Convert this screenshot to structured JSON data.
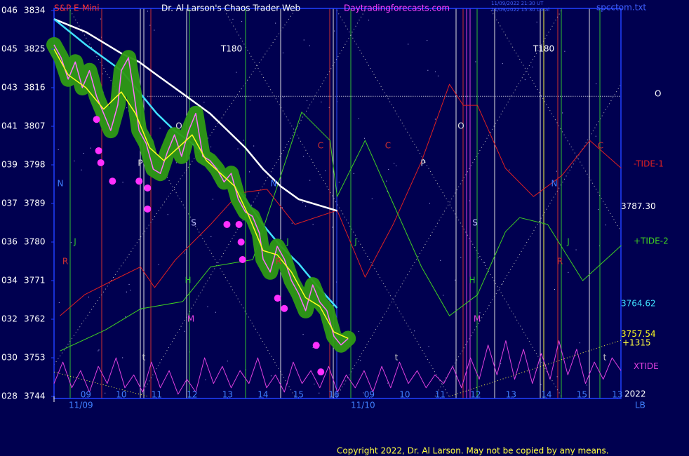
{
  "chart_data": {
    "type": "line",
    "title": "Dr. Al Larson's Chaos Trader Web",
    "instrument": "S&P E-Mini",
    "site": "Daytradingforecasts.com",
    "file": "spcctom.txt",
    "timestamps": [
      "11/09/2022 21:30 UT",
      "11/09/2022 15:30 Local"
    ],
    "copyright": "Copyright 2022, Dr. Al Larson. May not be copied by any means.",
    "dates": [
      "11/09",
      "11/10"
    ],
    "ylim": [
      3744,
      3834
    ],
    "yticks": [
      3834,
      3825,
      3816,
      3807,
      3798,
      3789,
      3780,
      3771,
      3762,
      3753,
      3744
    ],
    "ytick_codes": [
      "046",
      "045",
      "043",
      "041",
      "039",
      "037",
      "036",
      "034",
      "032",
      "030",
      "028"
    ],
    "xlim": [
      0.1,
      16.1
    ],
    "xticks": [
      {
        "value": 1,
        "label": "09"
      },
      {
        "value": 2,
        "label": "10"
      },
      {
        "value": 3,
        "label": "11"
      },
      {
        "value": 4,
        "label": "12"
      },
      {
        "value": 5,
        "label": "13"
      },
      {
        "value": 6,
        "label": "14"
      },
      {
        "value": 7,
        "label": "15"
      },
      {
        "value": 8,
        "label": "16"
      },
      {
        "value": 9,
        "label": "09"
      },
      {
        "value": 10,
        "label": "10"
      },
      {
        "value": 11,
        "label": "11"
      },
      {
        "value": 12,
        "label": "12"
      },
      {
        "value": 13,
        "label": "13"
      },
      {
        "value": 14,
        "label": "14"
      },
      {
        "value": 15,
        "label": "15"
      },
      {
        "value": 16,
        "label": "13"
      }
    ],
    "markers": [
      "N",
      "N",
      "N",
      "J",
      "J",
      "J",
      "J",
      "R",
      "R",
      "R",
      "H",
      "H",
      "M",
      "M",
      "S",
      "S",
      "P",
      "P",
      "O",
      "O",
      "C",
      "C",
      "C",
      "T180",
      "T180",
      "t",
      "t",
      "t"
    ],
    "annotations": [
      "+1315",
      "2022",
      "LB"
    ],
    "hline": {
      "value": 3814,
      "from": 2.74,
      "label": "O",
      "color": "#ffffff"
    },
    "series": [
      {
        "name": "-TIDE-1",
        "color": "#e02020",
        "width": 1,
        "x": [
          0.27,
          0.96,
          1.75,
          2.54,
          2.94,
          3.53,
          4.52,
          5.32,
          6.11,
          6.9,
          8.09,
          8.88,
          9.67,
          10.47,
          11.26,
          11.65,
          12.05,
          12.84,
          13.63,
          14.43,
          15.22,
          16.11
        ],
        "values": [
          3762.8,
          3767.7,
          3771,
          3774.2,
          3769.4,
          3775.9,
          3784.1,
          3791.4,
          3792.3,
          3784.1,
          3787.4,
          3771.8,
          3784.1,
          3798.8,
          3816.8,
          3811.9,
          3811.9,
          3797.2,
          3790.6,
          3795.5,
          3803.7,
          3797.2
        ]
      },
      {
        "name": "+TIDE-2",
        "color": "#40d020",
        "width": 1,
        "x": [
          0.27,
          1.55,
          2.54,
          3.73,
          4.52,
          5.71,
          6.5,
          7.09,
          7.89,
          8.09,
          8.88,
          9.67,
          10.47,
          11.26,
          12.05,
          12.84,
          13.24,
          14.03,
          15.02,
          16.11
        ],
        "values": [
          3754.6,
          3759.5,
          3764.4,
          3766.1,
          3774.2,
          3775.9,
          3795.5,
          3810.3,
          3803.7,
          3790.6,
          3803.7,
          3789,
          3774.2,
          3762.8,
          3767.7,
          3782.4,
          3785.7,
          3784.1,
          3771,
          3779.2
        ]
      },
      {
        "name": "XTIDE",
        "color": "#e040e0",
        "width": 1,
        "x": [
          0.1,
          0.35,
          0.6,
          0.85,
          1.1,
          1.35,
          1.6,
          1.85,
          2.1,
          2.35,
          2.6,
          2.85,
          3.1,
          3.35,
          3.6,
          3.85,
          4.1,
          4.35,
          4.6,
          4.85,
          5.1,
          5.35,
          5.6,
          5.85,
          6.1,
          6.35,
          6.6,
          6.85,
          7.1,
          7.35,
          7.6,
          7.85,
          8.1,
          8.35,
          8.6,
          8.85,
          9.1,
          9.35,
          9.6,
          9.85,
          10.1,
          10.35,
          10.6,
          10.85,
          11.1,
          11.35,
          11.6,
          11.85,
          12.1,
          12.35,
          12.6,
          12.85,
          13.1,
          13.35,
          13.6,
          13.85,
          14.1,
          14.35,
          14.6,
          14.85,
          15.1,
          15.35,
          15.6,
          15.85,
          16.1
        ],
        "values": [
          3747,
          3752,
          3746,
          3750,
          3745,
          3751,
          3747,
          3753,
          3746,
          3749,
          3745,
          3752,
          3746,
          3750,
          3744.5,
          3748,
          3745,
          3753,
          3747,
          3751,
          3746,
          3750,
          3747,
          3753,
          3746,
          3749,
          3745,
          3752,
          3747,
          3750,
          3746,
          3751,
          3745,
          3749,
          3746,
          3750,
          3745,
          3751,
          3746,
          3752,
          3747,
          3750,
          3746,
          3749,
          3747,
          3751,
          3746,
          3753,
          3748,
          3756,
          3749,
          3757,
          3748,
          3755,
          3747,
          3754,
          3748,
          3757,
          3749,
          3755,
          3747,
          3752,
          3748,
          3753,
          3750
        ]
      },
      {
        "color": "#ffff40",
        "width": 1,
        "dash": true,
        "x": [
          0.1,
          2.74
        ],
        "values": [
          3749.7,
          3744
        ]
      },
      {
        "color": "#ffff40",
        "width": 1,
        "dash": true,
        "x": [
          11.26,
          16.11
        ],
        "values": [
          3744,
          3757.1
        ]
      },
      {
        "color": "#ffffff",
        "width": 2.5,
        "x": [
          0.1,
          1,
          2,
          2.5,
          3,
          3.5,
          4,
          4.5,
          5,
          5.5,
          6,
          6.5,
          7,
          8.09
        ],
        "values": [
          3832,
          3829,
          3824,
          3822,
          3819,
          3816,
          3813,
          3810,
          3806,
          3802,
          3797,
          3793,
          3790,
          3787.3
        ],
        "end_label": "3787.30"
      },
      {
        "color": "#40e0ff",
        "width": 2.5,
        "x": [
          0.1,
          1,
          2,
          2.5,
          3,
          3.5,
          4,
          4.5,
          5,
          5.5,
          6,
          6.5,
          7,
          7.5,
          8.09
        ],
        "values": [
          3832,
          3826,
          3820,
          3815,
          3810,
          3806,
          3803,
          3799,
          3795,
          3790,
          3784,
          3779,
          3775,
          3770,
          3764.62
        ],
        "end_label": "3764.62"
      },
      {
        "color": "#ff70ff",
        "width": 1.5,
        "glow": "#2e9a14",
        "x": [
          0.1,
          0.3,
          0.5,
          0.7,
          0.9,
          1.1,
          1.3,
          1.5,
          1.7,
          1.9,
          2.0,
          2.2,
          2.35,
          2.5,
          2.7,
          2.9,
          3.1,
          3.3,
          3.5,
          3.7,
          3.9,
          4.1,
          4.3,
          4.5,
          4.7,
          4.9,
          5.1,
          5.3,
          5.5,
          5.7,
          5.9,
          6.0,
          6.2,
          6.4,
          6.6,
          6.8,
          7.0,
          7.2,
          7.4,
          7.6,
          7.8,
          8.0,
          8.2,
          8.4
        ],
        "values": [
          3826,
          3823,
          3818,
          3822,
          3816,
          3820,
          3814,
          3810,
          3806,
          3812,
          3820,
          3823,
          3815,
          3806,
          3803,
          3797,
          3796,
          3801,
          3805,
          3800,
          3806,
          3810,
          3800,
          3799,
          3797,
          3794,
          3796,
          3790,
          3787,
          3786,
          3782,
          3776,
          3773,
          3779,
          3776,
          3771,
          3768,
          3764,
          3770,
          3766,
          3764,
          3758,
          3756,
          3757.5
        ]
      },
      {
        "color": "#ffff20",
        "width": 1.5,
        "x": [
          0.1,
          0.5,
          1,
          1.5,
          2,
          2.4,
          2.8,
          3.2,
          3.6,
          4,
          4.4,
          4.8,
          5.2,
          5.6,
          6,
          6.4,
          6.8,
          7.2,
          7.6,
          8,
          8.4
        ],
        "values": [
          3825,
          3819,
          3816,
          3811,
          3815,
          3810,
          3802,
          3799,
          3802,
          3805,
          3799,
          3796,
          3793,
          3786,
          3778,
          3777,
          3773,
          3767,
          3765,
          3759,
          3757.54
        ],
        "end_label": "3757.54"
      }
    ],
    "dots": {
      "color": "#ff30ff",
      "x": [
        1.3,
        1.36,
        1.42,
        1.75,
        2.5,
        2.74,
        2.74,
        4.98,
        5.32,
        5.38,
        5.42,
        6.41,
        6.6,
        7.5,
        7.63
      ],
      "values": [
        3808.6,
        3801.3,
        3798.5,
        3794.2,
        3794.2,
        3792.6,
        3787.7,
        3784.1,
        3784.1,
        3780,
        3775.9,
        3766.9,
        3764.5,
        3755.9,
        3749.7
      ]
    }
  }
}
